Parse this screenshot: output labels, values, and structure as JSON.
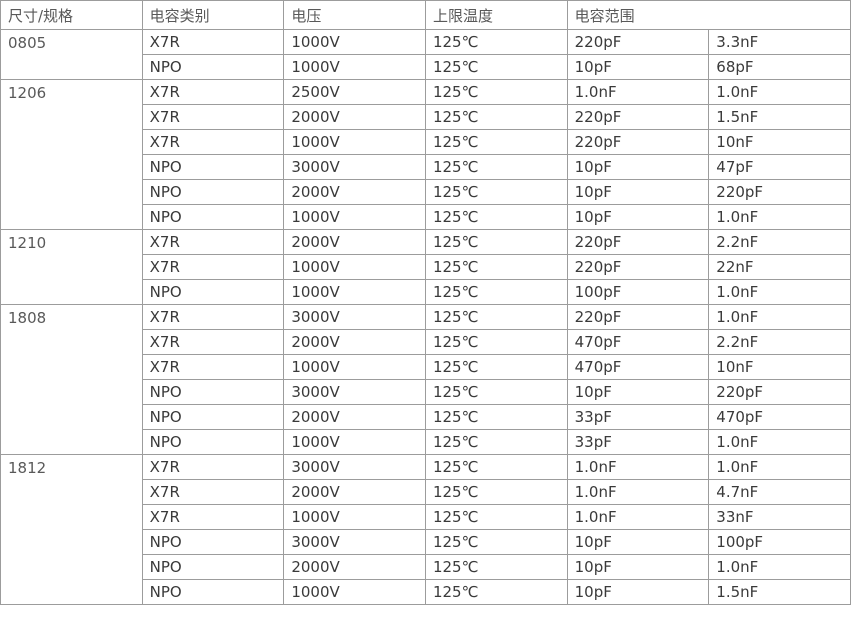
{
  "table": {
    "headers": {
      "size": "尺寸/规格",
      "type": "电容类别",
      "voltage": "电压",
      "temp": "上限温度",
      "cap_range": "电容范围"
    },
    "groups": [
      {
        "size": "0805",
        "rows": [
          {
            "type": "X7R",
            "voltage": "1000V",
            "temp": "125℃",
            "cap_min": "220pF",
            "cap_max": "3.3nF"
          },
          {
            "type": "NPO",
            "voltage": "1000V",
            "temp": "125℃",
            "cap_min": "10pF",
            "cap_max": "68pF"
          }
        ]
      },
      {
        "size": "1206",
        "rows": [
          {
            "type": "X7R",
            "voltage": "2500V",
            "temp": "125℃",
            "cap_min": "1.0nF",
            "cap_max": "1.0nF"
          },
          {
            "type": "X7R",
            "voltage": "2000V",
            "temp": "125℃",
            "cap_min": "220pF",
            "cap_max": "1.5nF"
          },
          {
            "type": "X7R",
            "voltage": "1000V",
            "temp": "125℃",
            "cap_min": "220pF",
            "cap_max": "10nF"
          },
          {
            "type": "NPO",
            "voltage": "3000V",
            "temp": "125℃",
            "cap_min": "10pF",
            "cap_max": "47pF"
          },
          {
            "type": "NPO",
            "voltage": "2000V",
            "temp": "125℃",
            "cap_min": "10pF",
            "cap_max": "220pF"
          },
          {
            "type": "NPO",
            "voltage": "1000V",
            "temp": "125℃",
            "cap_min": "10pF",
            "cap_max": "1.0nF"
          }
        ]
      },
      {
        "size": "1210",
        "rows": [
          {
            "type": "X7R",
            "voltage": "2000V",
            "temp": "125℃",
            "cap_min": "220pF",
            "cap_max": "2.2nF"
          },
          {
            "type": "X7R",
            "voltage": "1000V",
            "temp": "125℃",
            "cap_min": "220pF",
            "cap_max": "22nF"
          },
          {
            "type": "NPO",
            "voltage": "1000V",
            "temp": "125℃",
            "cap_min": "100pF",
            "cap_max": "1.0nF"
          }
        ]
      },
      {
        "size": "1808",
        "rows": [
          {
            "type": "X7R",
            "voltage": "3000V",
            "temp": "125℃",
            "cap_min": "220pF",
            "cap_max": "1.0nF"
          },
          {
            "type": "X7R",
            "voltage": "2000V",
            "temp": "125℃",
            "cap_min": "470pF",
            "cap_max": "2.2nF"
          },
          {
            "type": "X7R",
            "voltage": "1000V",
            "temp": "125℃",
            "cap_min": "470pF",
            "cap_max": "10nF"
          },
          {
            "type": "NPO",
            "voltage": "3000V",
            "temp": "125℃",
            "cap_min": "10pF",
            "cap_max": "220pF"
          },
          {
            "type": "NPO",
            "voltage": "2000V",
            "temp": "125℃",
            "cap_min": "33pF",
            "cap_max": "470pF"
          },
          {
            "type": "NPO",
            "voltage": "1000V",
            "temp": "125℃",
            "cap_min": "33pF",
            "cap_max": "1.0nF"
          }
        ]
      },
      {
        "size": "1812",
        "rows": [
          {
            "type": "X7R",
            "voltage": "3000V",
            "temp": "125℃",
            "cap_min": "1.0nF",
            "cap_max": "1.0nF"
          },
          {
            "type": "X7R",
            "voltage": "2000V",
            "temp": "125℃",
            "cap_min": "1.0nF",
            "cap_max": "4.7nF"
          },
          {
            "type": "X7R",
            "voltage": "1000V",
            "temp": "125℃",
            "cap_min": "1.0nF",
            "cap_max": "33nF"
          },
          {
            "type": "NPO",
            "voltage": "3000V",
            "temp": "125℃",
            "cap_min": "10pF",
            "cap_max": "100pF"
          },
          {
            "type": "NPO",
            "voltage": "2000V",
            "temp": "125℃",
            "cap_min": "10pF",
            "cap_max": "1.0nF"
          },
          {
            "type": "NPO",
            "voltage": "1000V",
            "temp": "125℃",
            "cap_min": "10pF",
            "cap_max": "1.5nF"
          }
        ]
      }
    ],
    "colors": {
      "border": "#9c9c9c",
      "header_text": "#595959",
      "size_text": "#595959",
      "body_text": "#3a3a3a",
      "background": "#ffffff"
    }
  }
}
